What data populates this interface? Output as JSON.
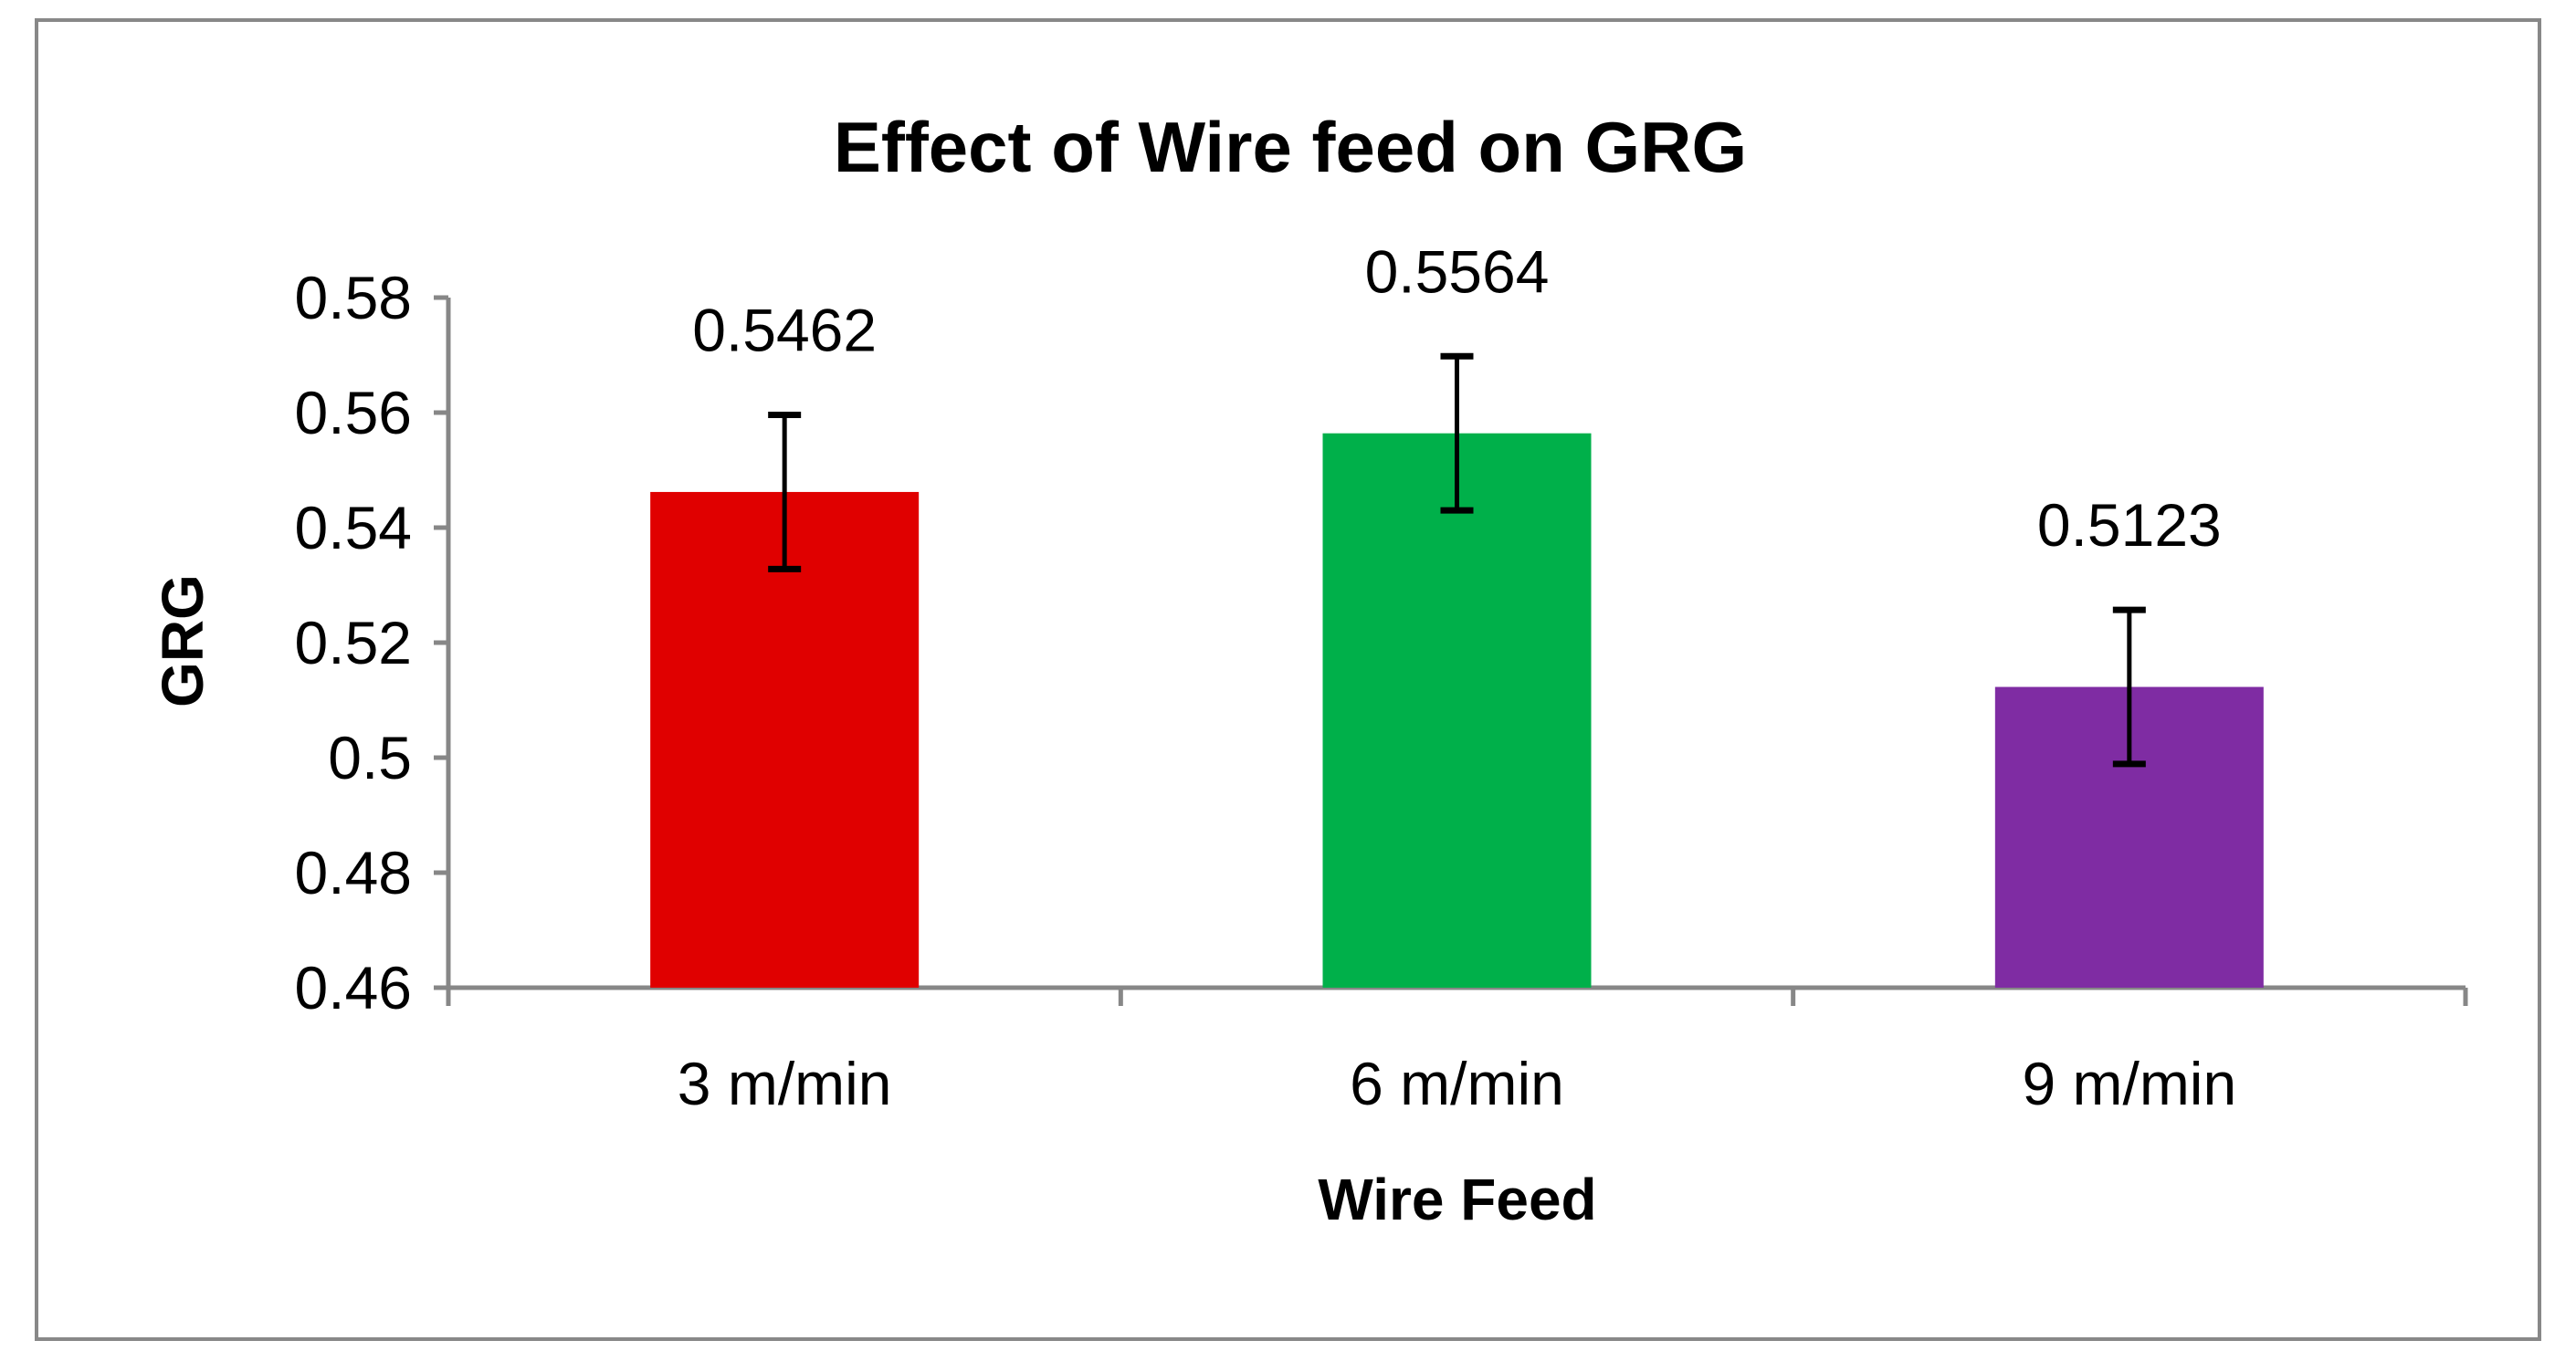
{
  "chart_data": {
    "type": "bar",
    "title": "Effect of Wire feed on GRG",
    "xlabel": "Wire Feed",
    "ylabel": "GRG",
    "categories": [
      "3 m/min",
      "6 m/min",
      "9 m/min"
    ],
    "values": [
      0.5462,
      0.5564,
      0.5123
    ],
    "data_labels": [
      "0.5462",
      "0.5564",
      "0.5123"
    ],
    "error": [
      0.0134,
      0.0134,
      0.0134
    ],
    "colors": [
      "#E00000",
      "#00B04A",
      "#7F2CA3"
    ],
    "ylim": [
      0.46,
      0.58
    ],
    "yticks": [
      0.46,
      0.48,
      0.5,
      0.52,
      0.54,
      0.56,
      0.58
    ],
    "ytick_labels": [
      "0.46",
      "0.48",
      "0.5",
      "0.52",
      "0.54",
      "0.56",
      "0.58"
    ],
    "grid": false,
    "legend": "none"
  }
}
